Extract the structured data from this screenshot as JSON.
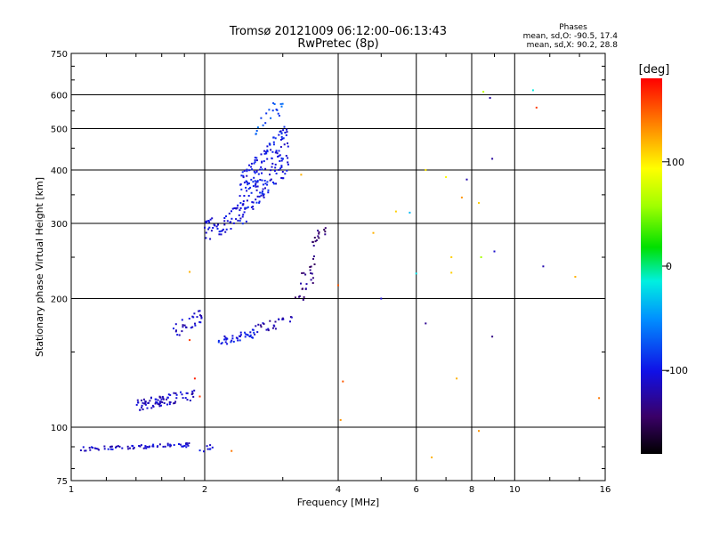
{
  "title": {
    "line1": "Tromsø 20121009 06:12:00–06:13:43",
    "line2": "RwPretec (8p)"
  },
  "stats": {
    "heading": "Phases",
    "o_line": "mean, sd,O: -90.5, 17.4",
    "x_line": "mean, sd,X:  90.2, 28.8"
  },
  "colorbar": {
    "label": "[deg]",
    "ticks": [
      {
        "value": 100,
        "text": "100"
      },
      {
        "value": 0,
        "text": "0"
      },
      {
        "value": -100,
        "text": "-100"
      }
    ],
    "range": [
      -180,
      180
    ]
  },
  "chart_data": {
    "type": "scatter",
    "title": "Tromsø 20121009 06:12:00–06:13:43",
    "subtitle": "RwPretec (8p)",
    "xlabel": "Frequency [MHz]",
    "ylabel": "Stationary phase Virtual Height [km]",
    "x_scale": "log",
    "y_scale": "log",
    "xlim": [
      1,
      16
    ],
    "ylim": [
      75,
      750
    ],
    "x_ticks": [
      1,
      2,
      4,
      6,
      8,
      10,
      16
    ],
    "y_ticks": [
      75,
      100,
      200,
      300,
      400,
      500,
      600,
      750
    ],
    "x_gridlines": [
      2,
      4,
      6,
      8,
      10
    ],
    "y_gridlines": [
      100,
      200,
      300,
      400,
      500,
      600
    ],
    "grid": true,
    "color_variable": "phase [deg]",
    "series": [
      {
        "segments": [
          {
            "f": [
              1.05,
              1.9
            ],
            "h": [
              88,
              92
            ],
            "phase": -110,
            "n": 70
          },
          {
            "f": [
              1.95,
              2.1
            ],
            "h": [
              87,
              92
            ],
            "phase": -105,
            "n": 8
          }
        ]
      },
      {
        "segments": [
          {
            "f": [
              1.4,
              1.9
            ],
            "h": [
              109,
              123
            ],
            "phase": -112,
            "n": 80
          },
          {
            "f": [
              1.7,
              1.98
            ],
            "h": [
              160,
              190
            ],
            "phase": -112,
            "n": 30
          },
          {
            "f": [
              2.15,
              2.6
            ],
            "h": [
              155,
              170
            ],
            "phase": -100,
            "n": 40
          },
          {
            "f": [
              2.6,
              3.2
            ],
            "h": [
              165,
              185
            ],
            "phase": -120,
            "n": 25
          },
          {
            "f": [
              3.2,
              3.55
            ],
            "h": [
              185,
              260
            ],
            "phase": -135,
            "n": 25
          },
          {
            "f": [
              3.5,
              3.75
            ],
            "h": [
              260,
              310
            ],
            "phase": -140,
            "n": 15
          }
        ]
      },
      {
        "segments": [
          {
            "f": [
              2.0,
              2.5
            ],
            "h": [
              270,
              340
            ],
            "phase": -105,
            "n": 60
          },
          {
            "f": [
              2.4,
              3.1
            ],
            "h": [
              300,
              520
            ],
            "phase": -100,
            "n": 180
          },
          {
            "f": [
              2.6,
              3.0
            ],
            "h": [
              480,
              600
            ],
            "phase": -75,
            "n": 20
          }
        ]
      },
      {
        "points": [
          [
            3.3,
            390,
            120
          ],
          [
            4.0,
            215,
            150
          ],
          [
            4.1,
            128,
            150
          ],
          [
            4.05,
            104,
            130
          ],
          [
            4.8,
            285,
            120
          ],
          [
            5.4,
            320,
            110
          ],
          [
            6.3,
            400,
            100
          ],
          [
            7.0,
            385,
            95
          ],
          [
            7.2,
            250,
            110
          ],
          [
            7.4,
            130,
            120
          ],
          [
            7.6,
            345,
            130
          ],
          [
            8.3,
            335,
            110
          ],
          [
            8.3,
            98,
            130
          ],
          [
            8.8,
            590,
            -125
          ],
          [
            8.9,
            425,
            -125
          ],
          [
            8.9,
            163,
            -135
          ],
          [
            9.0,
            258,
            -110
          ],
          [
            11.2,
            560,
            160
          ],
          [
            11.6,
            238,
            -120
          ],
          [
            13.7,
            225,
            120
          ],
          [
            15.5,
            117,
            140
          ],
          [
            6.5,
            85,
            120
          ],
          [
            2.3,
            88,
            140
          ],
          [
            1.95,
            118,
            160
          ],
          [
            1.9,
            130,
            170
          ],
          [
            1.85,
            160,
            160
          ],
          [
            8.5,
            610,
            70
          ],
          [
            11.0,
            615,
            -15
          ],
          [
            6.0,
            229,
            -20
          ],
          [
            6.3,
            175,
            -130
          ],
          [
            5.8,
            318,
            -35
          ],
          [
            7.2,
            230,
            110
          ],
          [
            7.8,
            380,
            -120
          ],
          [
            5.0,
            200,
            -110
          ],
          [
            1.85,
            231,
            120
          ],
          [
            8.4,
            250,
            60
          ]
        ]
      }
    ]
  }
}
